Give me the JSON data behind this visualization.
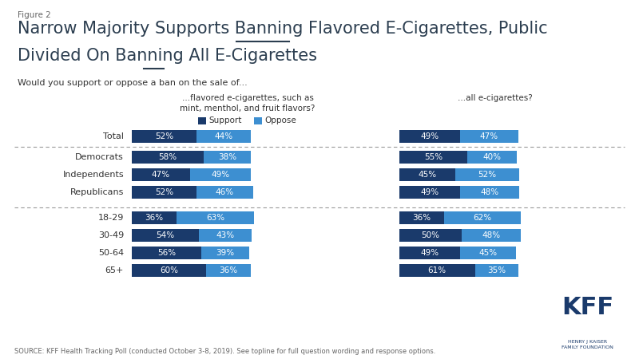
{
  "figure_label": "Figure 2",
  "title_line1": "Narrow Majority Supports Banning Flavored E-Cigarettes, Public",
  "title_line2": "Divided On Banning All E-Cigarettes",
  "title_underline1_word": "Flavored",
  "title_underline1_prefix": "Narrow Majority Supports Banning ",
  "title_underline2_word": "All",
  "title_underline2_prefix": "Divided On Banning ",
  "subtitle": "Would you support or oppose a ban on the sale of...",
  "col1_header_line1": "...flavored e-cigarettes, such as",
  "col1_header_line2": "mint, menthol, and fruit flavors?",
  "col2_header": "...all e-cigarettes?",
  "legend_support": "Support",
  "legend_oppose": "Oppose",
  "source": "SOURCE: KFF Health Tracking Poll (conducted October 3-8, 2019). See topline for full question wording and response options.",
  "categories": [
    "Total",
    "Democrats",
    "Independents",
    "Republicans",
    "18-29",
    "30-49",
    "50-64",
    "65+"
  ],
  "flavored_support": [
    52,
    58,
    47,
    52,
    36,
    54,
    56,
    60
  ],
  "flavored_oppose": [
    44,
    38,
    49,
    46,
    63,
    43,
    39,
    36
  ],
  "all_support": [
    49,
    55,
    45,
    49,
    36,
    50,
    49,
    61
  ],
  "all_oppose": [
    47,
    40,
    52,
    48,
    62,
    48,
    45,
    35
  ],
  "color_support": "#1a3a6b",
  "color_oppose": "#3d8fd1",
  "bg_color": "#ffffff",
  "title_color": "#2c3e50",
  "text_color": "#333333",
  "separator_color": "#999999",
  "kff_color": "#1a3a6b"
}
